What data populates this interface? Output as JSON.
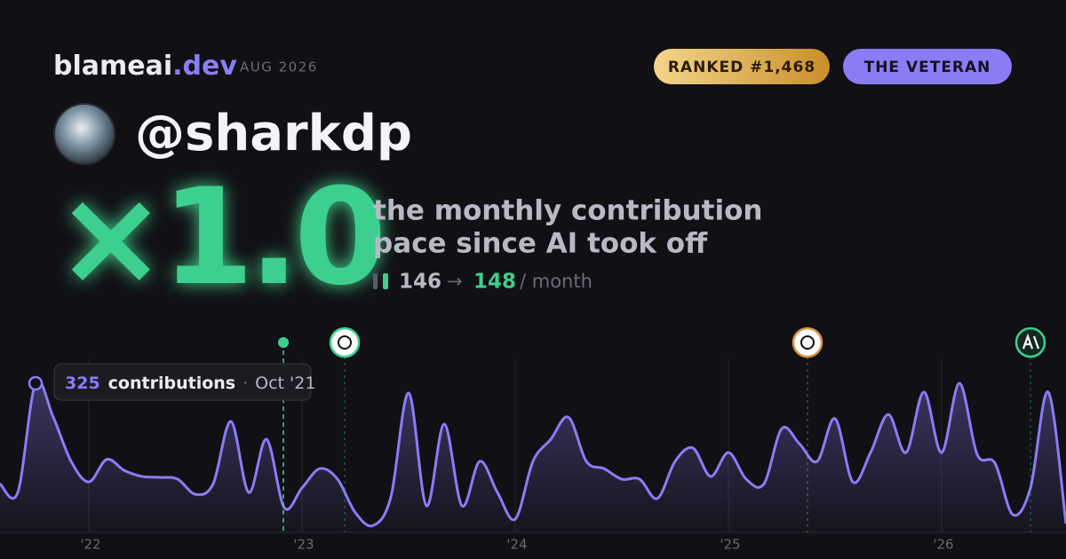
{
  "brand": {
    "name": "blameai",
    "tld": ".dev",
    "date": "AUG 2026"
  },
  "badges": {
    "rank": "RANKED #1,468",
    "persona": "THE VETERAN"
  },
  "user": {
    "handle": "@sharkdp"
  },
  "headline": {
    "multiplier": "×1.0",
    "line1": "the monthly contribution",
    "line2": "pace since AI took off"
  },
  "pace": {
    "before": 146,
    "arrow": "→",
    "after": 148,
    "unit": "/ month"
  },
  "tooltip": {
    "label": "contributions",
    "separator": "·",
    "date": "Oct '21"
  },
  "chart_data": {
    "type": "area",
    "categories": [
      null,
      null,
      null,
      null,
      null,
      "'22",
      null,
      null,
      null,
      null,
      null,
      null,
      null,
      null,
      null,
      null,
      null,
      "'23",
      null,
      null,
      null,
      null,
      null,
      null,
      null,
      null,
      null,
      null,
      null,
      "'24",
      null,
      null,
      null,
      null,
      null,
      null,
      null,
      null,
      null,
      null,
      null,
      "'25",
      null,
      null,
      null,
      null,
      null,
      null,
      null,
      null,
      null,
      null,
      null,
      "'26",
      null,
      null,
      null,
      null,
      null,
      null,
      null
    ],
    "values": [
      106,
      87,
      325,
      251,
      155,
      110,
      159,
      135,
      122,
      120,
      116,
      83,
      106,
      242,
      87,
      203,
      54,
      97,
      139,
      116,
      43,
      15,
      77,
      304,
      58,
      236,
      58,
      155,
      87,
      29,
      155,
      203,
      251,
      155,
      139,
      116,
      116,
      74,
      155,
      184,
      122,
      174,
      116,
      106,
      226,
      193,
      155,
      248,
      110,
      174,
      257,
      174,
      306,
      174,
      325,
      170,
      151,
      39,
      97,
      306,
      19
    ],
    "color": "#8b7cf6",
    "ylim": [
      0,
      325
    ]
  }
}
